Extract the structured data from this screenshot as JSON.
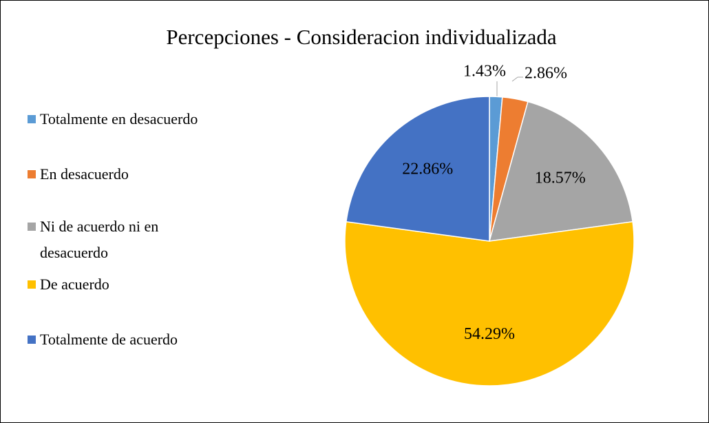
{
  "chart_data": {
    "type": "pie",
    "title": "Percepciones - Consideracion individualizada",
    "categories": [
      "Totalmente en desacuerdo",
      "En desacuerdo",
      "Ni de acuerdo ni en desacuerdo",
      "De acuerdo",
      "Totalmente de acuerdo"
    ],
    "values": [
      1.43,
      2.86,
      18.57,
      54.29,
      22.86
    ],
    "value_labels": [
      "1.43%",
      "2.86%",
      "18.57%",
      "54.29%",
      "22.86%"
    ],
    "colors": [
      "#5b9bd5",
      "#ed7d31",
      "#a5a5a5",
      "#ffc000",
      "#4472c4"
    ],
    "legend": "left"
  }
}
